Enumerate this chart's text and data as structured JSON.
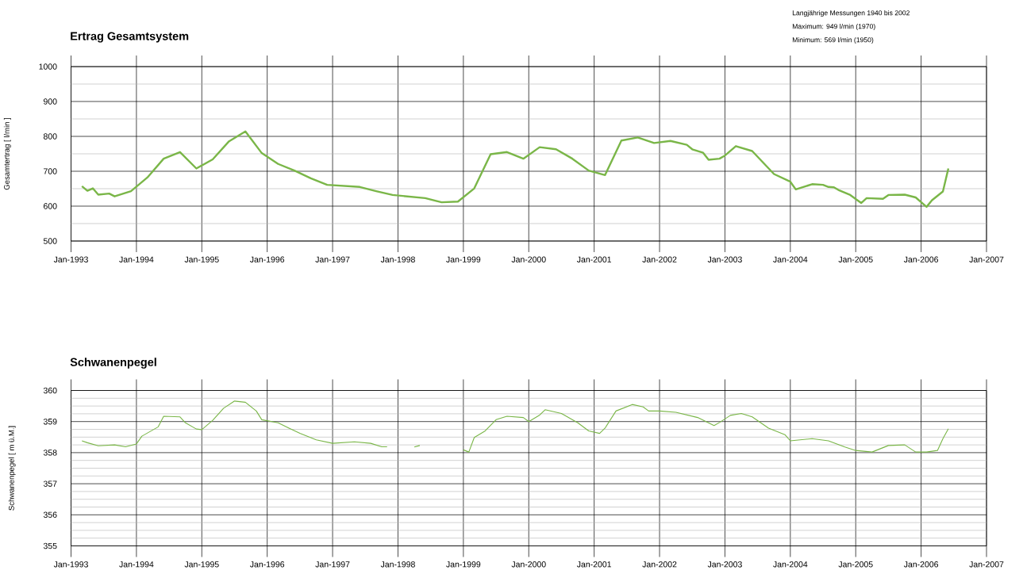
{
  "chart_data": [
    {
      "type": "line",
      "title": "Ertrag Gesamtsystem",
      "ylabel": "Gesamtertrag [ l/min ]",
      "color": "#7ab648",
      "grid": true,
      "annotations": [
        "Langjährige Messungen 1940 bis 2002",
        "Maximum: 949 l/min (1970)",
        "Minimum: 569 l/min (1950)"
      ],
      "x": [
        "1993-03",
        "1993-04",
        "1993-05",
        "1993-06",
        "1993-08",
        "1993-09",
        "1993-12",
        "1994-03",
        "1994-06",
        "1994-09",
        "1994-12",
        "1995-03",
        "1995-06",
        "1995-09",
        "1995-12",
        "1996-03",
        "1996-06",
        "1996-09",
        "1996-12",
        "1997-06",
        "1997-09",
        "1997-12",
        "1998-06",
        "1998-09",
        "1998-12",
        "1999-03",
        "1999-06",
        "1999-09",
        "1999-12",
        "2000-03",
        "2000-06",
        "2000-09",
        "2000-12",
        "2001-03",
        "2001-06",
        "2001-09",
        "2001-12",
        "2002-03",
        "2002-06",
        "2002-07",
        "2002-09",
        "2002-10",
        "2002-12",
        "2003-01",
        "2003-03",
        "2003-06",
        "2003-10",
        "2004-01",
        "2004-02",
        "2004-05",
        "2004-07",
        "2004-08",
        "2004-09",
        "2004-10",
        "2004-12",
        "2005-02",
        "2005-03",
        "2005-06",
        "2005-07",
        "2005-10",
        "2005-12",
        "2006-02",
        "2006-03",
        "2006-05",
        "2006-06"
      ],
      "values": [
        657,
        644,
        651,
        633,
        636,
        628,
        643,
        682,
        736,
        755,
        708,
        734,
        786,
        814,
        752,
        721,
        702,
        680,
        661,
        655,
        643,
        632,
        623,
        611,
        613,
        651,
        749,
        755,
        736,
        769,
        763,
        736,
        702,
        689,
        788,
        797,
        781,
        787,
        776,
        763,
        753,
        733,
        736,
        745,
        772,
        758,
        692,
        670,
        648,
        663,
        661,
        655,
        654,
        645,
        632,
        609,
        623,
        621,
        632,
        633,
        625,
        598,
        617,
        642,
        708
      ],
      "xlim": [
        "1993-01",
        "2007-01"
      ],
      "xticks": [
        {
          "value": "1993-01",
          "label": "Jan-1993"
        },
        {
          "value": "1994-01",
          "label": "Jan-1994"
        },
        {
          "value": "1995-01",
          "label": "Jan-1995"
        },
        {
          "value": "1996-01",
          "label": "Jan-1996"
        },
        {
          "value": "1997-01",
          "label": "Jan-1997"
        },
        {
          "value": "1998-01",
          "label": "Jan-1998"
        },
        {
          "value": "1999-01",
          "label": "Jan-1999"
        },
        {
          "value": "2000-01",
          "label": "Jan-2000"
        },
        {
          "value": "2001-01",
          "label": "Jan-2001"
        },
        {
          "value": "2002-01",
          "label": "Jan-2002"
        },
        {
          "value": "2003-01",
          "label": "Jan-2003"
        },
        {
          "value": "2004-01",
          "label": "Jan-2004"
        },
        {
          "value": "2005-01",
          "label": "Jan-2005"
        },
        {
          "value": "2006-01",
          "label": "Jan-2006"
        },
        {
          "value": "2007-01",
          "label": "Jan-2007"
        }
      ],
      "ylim": [
        500,
        1000
      ],
      "yticks": [
        500,
        {
          "value": 550,
          "label": null
        },
        600,
        {
          "value": 650,
          "label": null
        },
        700,
        {
          "value": 750,
          "label": null
        },
        800,
        {
          "value": 850,
          "label": null
        },
        900,
        {
          "value": 950,
          "label": null
        },
        1000
      ]
    },
    {
      "type": "line",
      "title": "Schwanenpegel",
      "ylabel": "Schwanenpegel [ m ü.M.]",
      "color": "#7ab648",
      "grid": true,
      "x": [
        "1993-03",
        "1993-04",
        "1993-06",
        "1993-09",
        "1993-11",
        "1994-01",
        "1994-02",
        "1994-05",
        "1994-06",
        "1994-09",
        "1994-10",
        "1994-12",
        "1995-01",
        "1995-03",
        "1995-05",
        "1995-07",
        "1995-09",
        "1995-11",
        "1995-12",
        "1996-03",
        "1996-05",
        "1996-07",
        "1996-10",
        "1997-01",
        "1997-05",
        "1997-08",
        "1997-10",
        "1997-11",
        "1998-01",
        "1998-04",
        "1998-05",
        "1998-09",
        "1999-01",
        "1999-02",
        "1999-03",
        "1999-05",
        "1999-07",
        "1999-09",
        "1999-12",
        "2000-01",
        "2000-03",
        "2000-04",
        "2000-07",
        "2000-10",
        "2000-12",
        "2001-02",
        "2001-03",
        "2001-05",
        "2001-08",
        "2001-10",
        "2001-11",
        "2002-01",
        "2002-04",
        "2002-08",
        "2002-11",
        "2002-12",
        "2003-02",
        "2003-04",
        "2003-06",
        "2003-09",
        "2003-12",
        "2004-01",
        "2004-05",
        "2004-08",
        "2004-11",
        "2005-01",
        "2005-04",
        "2005-07",
        "2005-10",
        "2005-12",
        "2006-02",
        "2006-04",
        "2006-05",
        "2006-06"
      ],
      "values": [
        358.38,
        358.32,
        358.22,
        358.25,
        358.19,
        358.28,
        358.53,
        358.83,
        359.17,
        359.15,
        358.96,
        358.76,
        358.74,
        359.04,
        359.43,
        359.66,
        359.62,
        359.34,
        359.06,
        358.96,
        358.79,
        358.62,
        358.41,
        358.3,
        358.35,
        358.3,
        358.19,
        358.19,
        null,
        358.18,
        358.23,
        null,
        358.09,
        358.02,
        358.49,
        358.7,
        359.06,
        359.17,
        359.13,
        359.0,
        359.21,
        359.38,
        359.26,
        358.96,
        358.7,
        358.62,
        358.79,
        359.34,
        359.55,
        359.47,
        359.34,
        359.34,
        359.3,
        359.13,
        358.87,
        358.97,
        359.2,
        359.26,
        359.15,
        358.79,
        358.58,
        358.38,
        358.45,
        358.38,
        358.18,
        358.07,
        358.02,
        358.23,
        358.25,
        358.02,
        358.02,
        358.07,
        358.45,
        358.77
      ],
      "xlim": [
        "1993-01",
        "2007-01"
      ],
      "xticks": [
        {
          "value": "1993-01",
          "label": "Jan-1993"
        },
        {
          "value": "1994-01",
          "label": "Jan-1994"
        },
        {
          "value": "1995-01",
          "label": "Jan-1995"
        },
        {
          "value": "1996-01",
          "label": "Jan-1996"
        },
        {
          "value": "1997-01",
          "label": "Jan-1997"
        },
        {
          "value": "1998-01",
          "label": "Jan-1998"
        },
        {
          "value": "1999-01",
          "label": "Jan-1999"
        },
        {
          "value": "2000-01",
          "label": "Jan-2000"
        },
        {
          "value": "2001-01",
          "label": "Jan-2001"
        },
        {
          "value": "2002-01",
          "label": "Jan-2002"
        },
        {
          "value": "2003-01",
          "label": "Jan-2003"
        },
        {
          "value": "2004-01",
          "label": "Jan-2004"
        },
        {
          "value": "2005-01",
          "label": "Jan-2005"
        },
        {
          "value": "2006-01",
          "label": "Jan-2006"
        },
        {
          "value": "2007-01",
          "label": "Jan-2007"
        }
      ],
      "ylim": [
        355,
        360
      ],
      "yticks": [
        355,
        {
          "value": 355.25,
          "label": null
        },
        {
          "value": 355.5,
          "label": null
        },
        {
          "value": 355.75,
          "label": null
        },
        356,
        {
          "value": 356.25,
          "label": null
        },
        {
          "value": 356.5,
          "label": null
        },
        {
          "value": 356.75,
          "label": null
        },
        357,
        {
          "value": 357.25,
          "label": null
        },
        {
          "value": 357.5,
          "label": null
        },
        {
          "value": 357.75,
          "label": null
        },
        358,
        {
          "value": 358.25,
          "label": null
        },
        {
          "value": 358.5,
          "label": null
        },
        {
          "value": 358.75,
          "label": null
        },
        359,
        {
          "value": 359.25,
          "label": null
        },
        {
          "value": 359.5,
          "label": null
        },
        {
          "value": 359.75,
          "label": null
        },
        360
      ]
    }
  ]
}
